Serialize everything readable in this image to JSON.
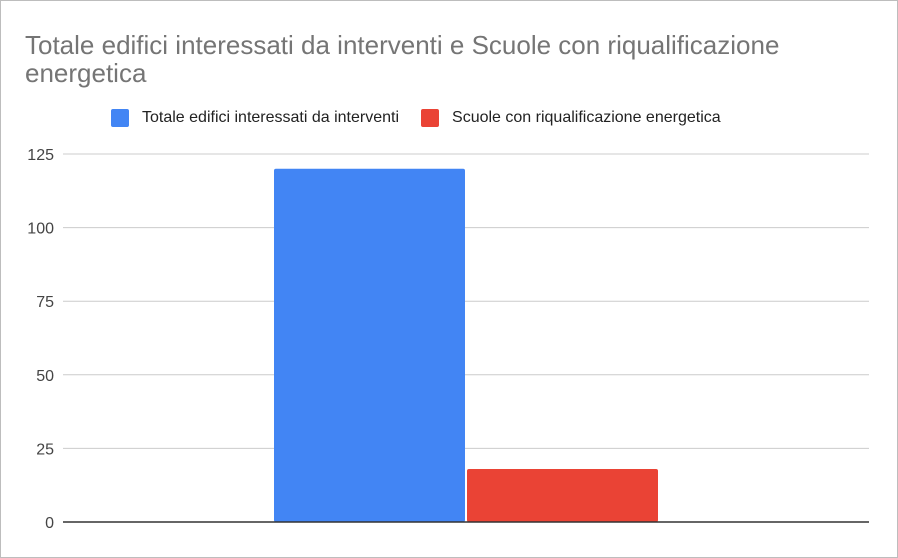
{
  "chart_data": {
    "type": "bar",
    "title": "Totale edifici interessati da interventi e Scuole con riqualificazione energetica",
    "xlabel": "",
    "ylabel": "",
    "categories": [
      ""
    ],
    "series": [
      {
        "name": "Totale edifici interessati da interventi",
        "values": [
          120
        ],
        "color": "#4285f4"
      },
      {
        "name": "Scuole con riqualificazione energetica",
        "values": [
          18
        ],
        "color": "#ea4335"
      }
    ],
    "ylim": [
      0,
      125
    ],
    "yticks": [
      "0",
      "25",
      "50",
      "75",
      "100",
      "125"
    ],
    "legend_position": "top",
    "grid": true
  }
}
